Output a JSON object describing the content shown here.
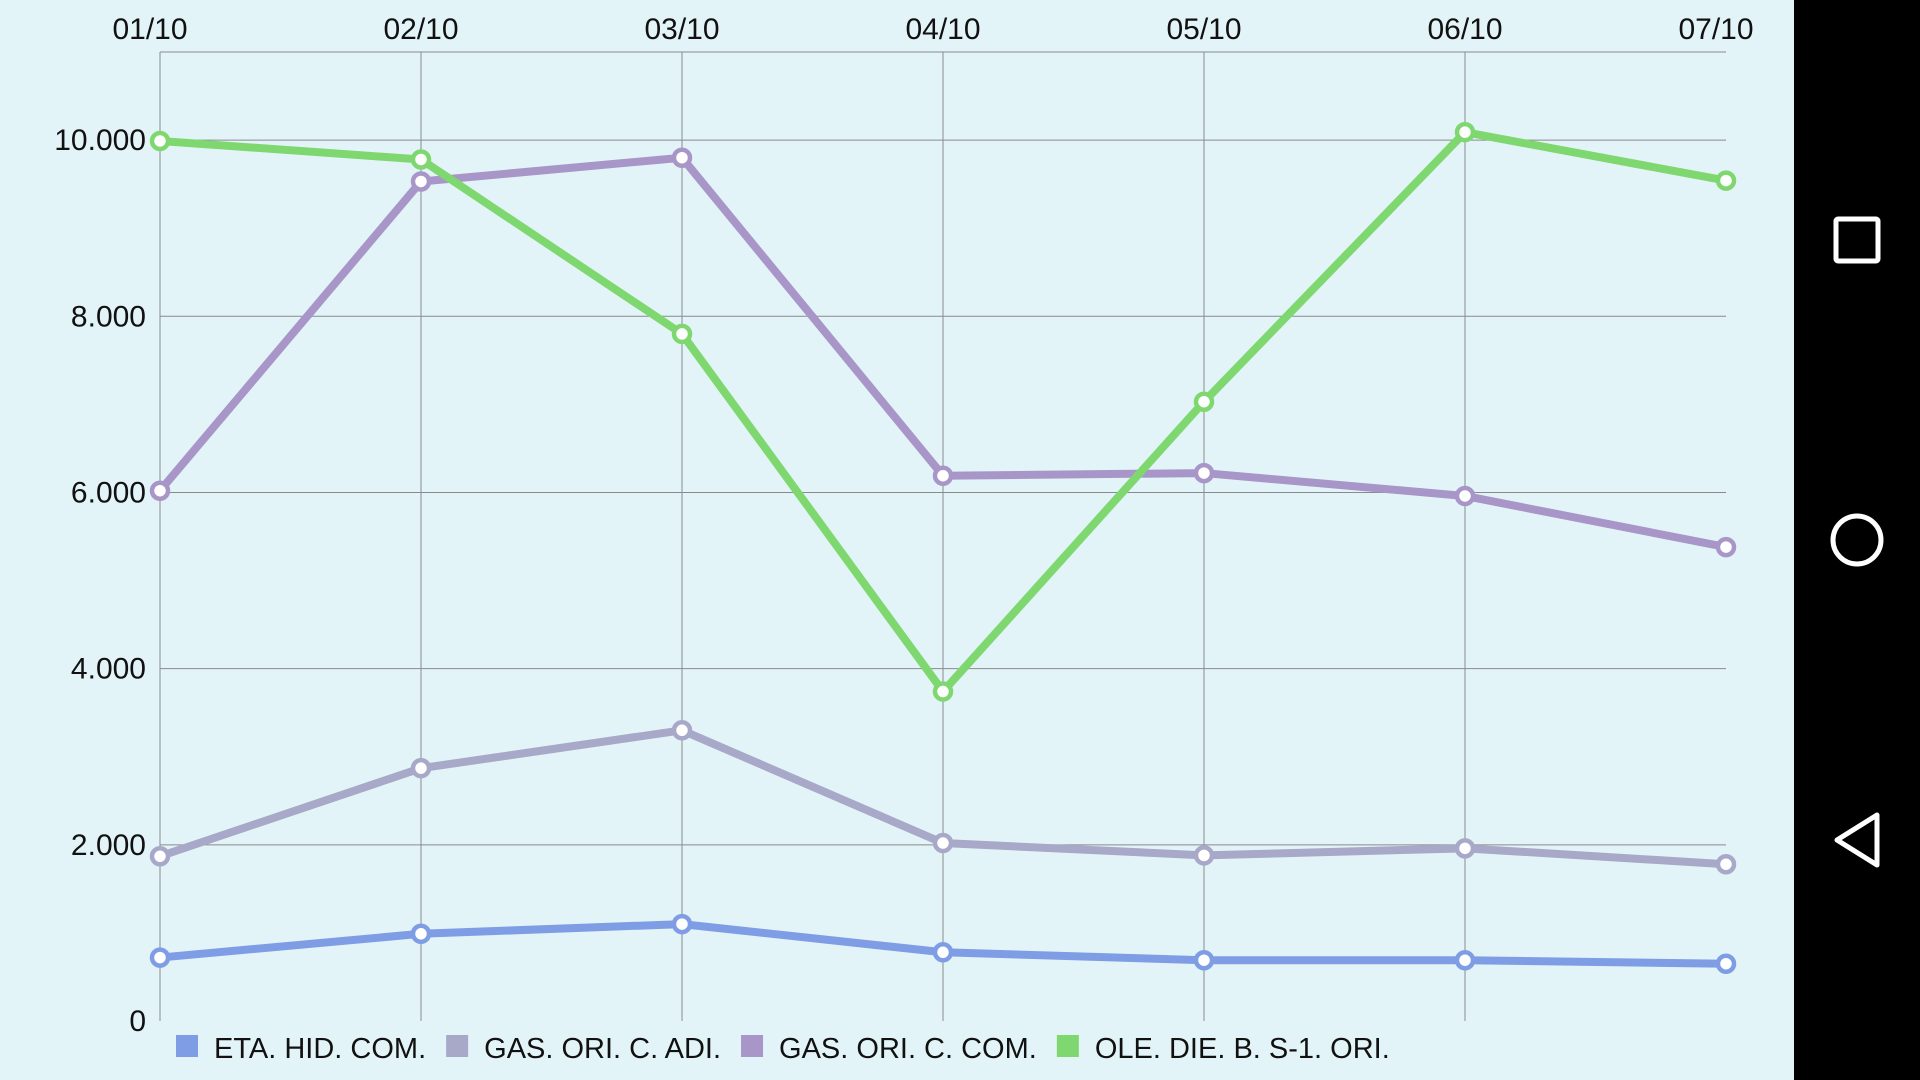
{
  "chart_data": {
    "type": "line",
    "x": [
      "01/10",
      "02/10",
      "03/10",
      "04/10",
      "05/10",
      "06/10",
      "07/10"
    ],
    "yticks": [
      "0",
      "2.000",
      "4.000",
      "6.000",
      "8.000",
      "10.000"
    ],
    "ylim": [
      0,
      11000
    ],
    "xlabel": "",
    "ylabel": "",
    "grid": true,
    "legend_position": "bottom",
    "series": [
      {
        "name": "ETA. HID. COM.",
        "color": "#7f9de5",
        "values": [
          720,
          990,
          1100,
          780,
          690,
          690,
          650
        ]
      },
      {
        "name": "GAS. ORI. C. ADI.",
        "color": "#a8a8c8",
        "values": [
          1870,
          2870,
          3300,
          2020,
          1880,
          1960,
          1780
        ]
      },
      {
        "name": "GAS. ORI. C. COM.",
        "color": "#a996c8",
        "values": [
          6020,
          9530,
          9800,
          6190,
          6220,
          5960,
          5380
        ]
      },
      {
        "name": "OLE. DIE. B. S-1. ORI.",
        "color": "#7ed86f",
        "values": [
          9990,
          9780,
          7800,
          3740,
          7030,
          10090,
          9540
        ]
      }
    ]
  },
  "navbar": {
    "recents_icon": "square-recents-icon",
    "home_icon": "circle-home-icon",
    "back_icon": "triangle-back-icon"
  }
}
